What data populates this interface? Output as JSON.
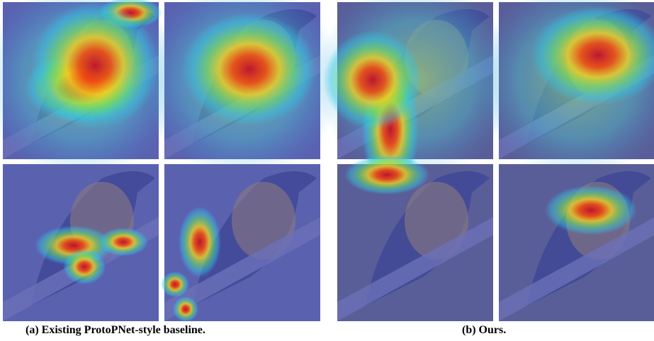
{
  "figure": {
    "panels": [
      {
        "caption": "(a) Existing ProtoPNet-style baseline."
      },
      {
        "caption": "(b) Ours."
      }
    ]
  }
}
